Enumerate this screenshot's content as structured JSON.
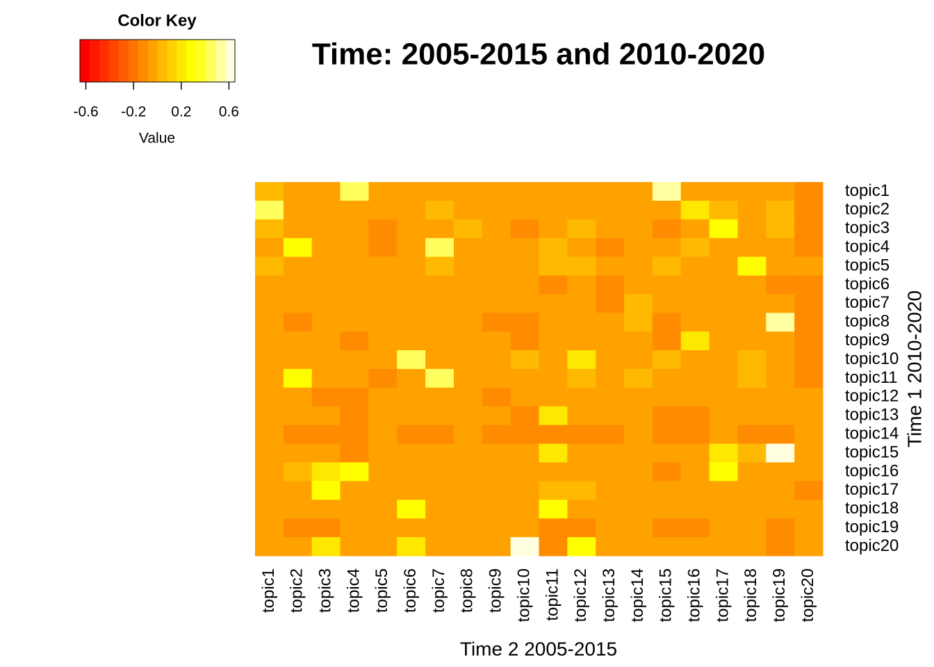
{
  "chart_data": {
    "type": "heatmap",
    "title": "Time: 2005-2015 and 2010-2020",
    "x_label": "Time 2 2005-2015",
    "y_label": "Time 1 2010-2020",
    "x_categories": [
      "topic1",
      "topic2",
      "topic3",
      "topic4",
      "topic5",
      "topic6",
      "topic7",
      "topic8",
      "topic9",
      "topic10",
      "topic11",
      "topic12",
      "topic13",
      "topic14",
      "topic15",
      "topic16",
      "topic17",
      "topic18",
      "topic19",
      "topic20"
    ],
    "y_categories": [
      "topic1",
      "topic2",
      "topic3",
      "topic4",
      "topic5",
      "topic6",
      "topic7",
      "topic8",
      "topic9",
      "topic10",
      "topic11",
      "topic12",
      "topic13",
      "topic14",
      "topic15",
      "topic16",
      "topic17",
      "topic18",
      "topic19",
      "topic20"
    ],
    "values": [
      [
        0.04,
        -0.04,
        -0.04,
        0.44,
        -0.04,
        -0.04,
        -0.04,
        -0.04,
        -0.04,
        -0.04,
        -0.04,
        -0.04,
        -0.04,
        -0.04,
        0.52,
        -0.04,
        -0.04,
        -0.04,
        -0.04,
        -0.12
      ],
      [
        0.44,
        -0.04,
        -0.04,
        -0.04,
        -0.04,
        -0.04,
        0.04,
        -0.04,
        -0.04,
        -0.04,
        -0.04,
        -0.04,
        -0.04,
        -0.04,
        -0.04,
        0.2,
        0.04,
        -0.04,
        0.04,
        -0.12
      ],
      [
        0.04,
        -0.04,
        -0.04,
        -0.04,
        -0.12,
        -0.04,
        -0.04,
        0.04,
        -0.04,
        -0.12,
        -0.04,
        0.04,
        -0.04,
        -0.04,
        -0.12,
        -0.04,
        0.28,
        -0.04,
        0.04,
        -0.12
      ],
      [
        -0.04,
        0.28,
        -0.04,
        -0.04,
        -0.12,
        -0.04,
        0.44,
        -0.04,
        -0.04,
        -0.04,
        0.04,
        -0.04,
        -0.12,
        -0.04,
        -0.04,
        0.04,
        -0.04,
        -0.04,
        -0.04,
        -0.12
      ],
      [
        0.04,
        -0.04,
        -0.04,
        -0.04,
        -0.04,
        -0.04,
        0.04,
        -0.04,
        -0.04,
        -0.04,
        0.04,
        0.04,
        -0.04,
        -0.04,
        0.04,
        -0.04,
        -0.04,
        0.28,
        -0.04,
        -0.04
      ],
      [
        -0.04,
        -0.04,
        -0.04,
        -0.04,
        -0.04,
        -0.04,
        -0.04,
        -0.04,
        -0.04,
        -0.04,
        -0.12,
        -0.04,
        -0.12,
        -0.04,
        -0.04,
        -0.04,
        -0.04,
        -0.04,
        -0.12,
        -0.12
      ],
      [
        -0.04,
        -0.04,
        -0.04,
        -0.04,
        -0.04,
        -0.04,
        -0.04,
        -0.04,
        -0.04,
        -0.04,
        -0.04,
        -0.04,
        -0.12,
        0.04,
        -0.04,
        -0.04,
        -0.04,
        -0.04,
        -0.04,
        -0.12
      ],
      [
        -0.04,
        -0.12,
        -0.04,
        -0.04,
        -0.04,
        -0.04,
        -0.04,
        -0.04,
        -0.12,
        -0.12,
        -0.04,
        -0.04,
        -0.04,
        0.04,
        -0.12,
        -0.04,
        -0.04,
        -0.04,
        0.52,
        -0.12
      ],
      [
        -0.04,
        -0.04,
        -0.04,
        -0.12,
        -0.04,
        -0.04,
        -0.04,
        -0.04,
        -0.04,
        -0.12,
        -0.04,
        -0.04,
        -0.04,
        -0.04,
        -0.12,
        0.2,
        -0.04,
        -0.04,
        -0.04,
        -0.12
      ],
      [
        -0.04,
        -0.04,
        -0.04,
        -0.04,
        -0.04,
        0.44,
        -0.04,
        -0.04,
        -0.04,
        0.04,
        -0.04,
        0.2,
        -0.04,
        -0.04,
        0.04,
        -0.04,
        -0.04,
        0.04,
        -0.04,
        -0.12
      ],
      [
        -0.04,
        0.28,
        -0.04,
        -0.04,
        -0.12,
        -0.04,
        0.44,
        -0.04,
        -0.04,
        -0.04,
        -0.04,
        0.04,
        -0.04,
        0.04,
        -0.04,
        -0.04,
        -0.04,
        0.04,
        -0.04,
        -0.12
      ],
      [
        -0.04,
        -0.04,
        -0.12,
        -0.12,
        -0.04,
        -0.04,
        -0.04,
        -0.04,
        -0.12,
        -0.04,
        -0.04,
        -0.04,
        -0.04,
        -0.04,
        -0.04,
        -0.04,
        -0.04,
        -0.04,
        -0.04,
        -0.04
      ],
      [
        -0.04,
        -0.04,
        -0.04,
        -0.12,
        -0.04,
        -0.04,
        -0.04,
        -0.04,
        -0.04,
        -0.12,
        0.2,
        -0.04,
        -0.04,
        -0.04,
        -0.12,
        -0.12,
        -0.04,
        -0.04,
        -0.04,
        -0.04
      ],
      [
        -0.04,
        -0.12,
        -0.12,
        -0.12,
        -0.04,
        -0.12,
        -0.12,
        -0.04,
        -0.12,
        -0.12,
        -0.12,
        -0.12,
        -0.12,
        -0.04,
        -0.12,
        -0.12,
        -0.04,
        -0.12,
        -0.12,
        -0.04
      ],
      [
        -0.04,
        -0.04,
        -0.04,
        -0.12,
        -0.04,
        -0.04,
        -0.04,
        -0.04,
        -0.04,
        -0.04,
        0.2,
        -0.04,
        -0.04,
        -0.04,
        -0.04,
        -0.04,
        0.2,
        0.04,
        0.6,
        -0.04
      ],
      [
        -0.04,
        0.04,
        0.2,
        0.28,
        -0.04,
        -0.04,
        -0.04,
        -0.04,
        -0.04,
        -0.04,
        -0.04,
        -0.04,
        -0.04,
        -0.04,
        -0.12,
        -0.04,
        0.28,
        -0.04,
        -0.04,
        -0.04
      ],
      [
        -0.04,
        -0.04,
        0.28,
        -0.04,
        -0.04,
        -0.04,
        -0.04,
        -0.04,
        -0.04,
        -0.04,
        0.04,
        0.04,
        -0.04,
        -0.04,
        -0.04,
        -0.04,
        -0.04,
        -0.04,
        -0.04,
        -0.12
      ],
      [
        -0.04,
        -0.04,
        -0.04,
        -0.04,
        -0.04,
        0.28,
        -0.04,
        -0.04,
        -0.04,
        -0.04,
        0.28,
        -0.04,
        -0.04,
        -0.04,
        -0.04,
        -0.04,
        -0.04,
        -0.04,
        -0.04,
        -0.04
      ],
      [
        -0.04,
        -0.12,
        -0.12,
        -0.04,
        -0.04,
        -0.04,
        -0.04,
        -0.04,
        -0.04,
        -0.04,
        -0.12,
        -0.12,
        -0.04,
        -0.04,
        -0.12,
        -0.12,
        -0.04,
        -0.04,
        -0.12,
        -0.04
      ],
      [
        -0.04,
        -0.04,
        0.2,
        -0.04,
        -0.04,
        0.2,
        -0.04,
        -0.04,
        -0.04,
        0.6,
        -0.12,
        0.28,
        -0.04,
        -0.04,
        -0.04,
        -0.04,
        -0.04,
        -0.04,
        -0.12,
        -0.04
      ]
    ],
    "zlim": [
      -0.65,
      0.65
    ],
    "colors": [
      "#FF0000",
      "#FF1700",
      "#FF2E00",
      "#FF4600",
      "#FF5D00",
      "#FF7400",
      "#FF8B00",
      "#FFA200",
      "#FFB900",
      "#FFD100",
      "#FFE800",
      "#FFFF00",
      "#FFFF20",
      "#FFFF60",
      "#FFFF9F",
      "#FFFFDF"
    ],
    "key": {
      "title": "Color Key",
      "x_label": "Value",
      "ticks": [
        -0.6,
        -0.2,
        0.2,
        0.6
      ]
    }
  }
}
